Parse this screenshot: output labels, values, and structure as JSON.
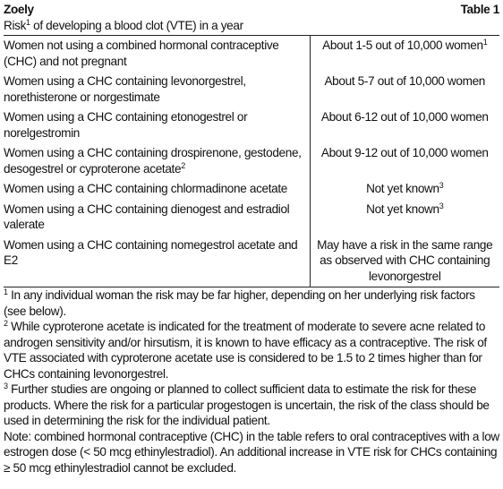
{
  "header": {
    "title": "Zoely",
    "table_label": "Table 1",
    "subtitle": {
      "before": "Risk",
      "sup": "1",
      "after": " of developing a blood clot (VTE) in a year"
    }
  },
  "table": {
    "rows": [
      [
        {
          "text": "Women not using a combined hormonal contraceptive (CHC) and not pregnant"
        },
        {
          "text": "About 1-5 out of 10,000 women",
          "sup": "1"
        }
      ],
      [
        {
          "text": "Women using a CHC containing levonorgestrel, norethisterone or norgestimate"
        },
        {
          "text": "About 5-7 out of 10,000 women"
        }
      ],
      [
        {
          "text": "Women using a CHC containing etonogestrel or norelgestromin"
        },
        {
          "text": "About 6-12 out of 10,000 women"
        }
      ],
      [
        {
          "text": "Women using a CHC containing drospirenone, gestodene, desogestrel or cyproterone acetate",
          "sup": "2"
        },
        {
          "text": "About 9-12 out of 10,000 women"
        }
      ],
      [
        {
          "text": "Women using a CHC containing chlormadinone acetate"
        },
        {
          "text": "Not yet known",
          "sup": "3"
        }
      ],
      [
        {
          "text": "Women using a CHC containing dienogest and estradiol valerate"
        },
        {
          "text": "Not yet known",
          "sup": "3"
        }
      ],
      [
        {
          "text": "Women using a CHC containing nomegestrol acetate and E2"
        },
        {
          "text": "May have a risk in the same range as observed with CHC containing levonorgestrel"
        }
      ]
    ]
  },
  "footnotes": [
    {
      "sup": "1",
      "text": " In any individual woman the risk may be far higher, depending on her underlying risk factors (see below)."
    },
    {
      "sup": "2",
      "text": " While cyproterone acetate is indicated for the treatment of moderate to severe acne related to androgen sensitivity and/or hirsutism, it is known to have efficacy as a contraceptive. The risk of VTE associated with cyproterone acetate use is considered to be 1.5 to 2 times higher than for CHCs containing levonorgestrel."
    },
    {
      "sup": "3",
      "text": " Further studies are ongoing or planned to collect sufficient data to estimate the risk for these products. Where the risk for a particular progestogen is uncertain, the risk of the class should be used in determining the risk for the individual patient."
    }
  ],
  "note": "Note: combined hormonal contraceptive (CHC) in the table refers to oral contraceptives with a low estrogen dose (< 50 mcg ethinylestradiol). An additional increase in VTE risk for CHCs containing ≥ 50 mcg ethinylestradiol cannot be excluded."
}
